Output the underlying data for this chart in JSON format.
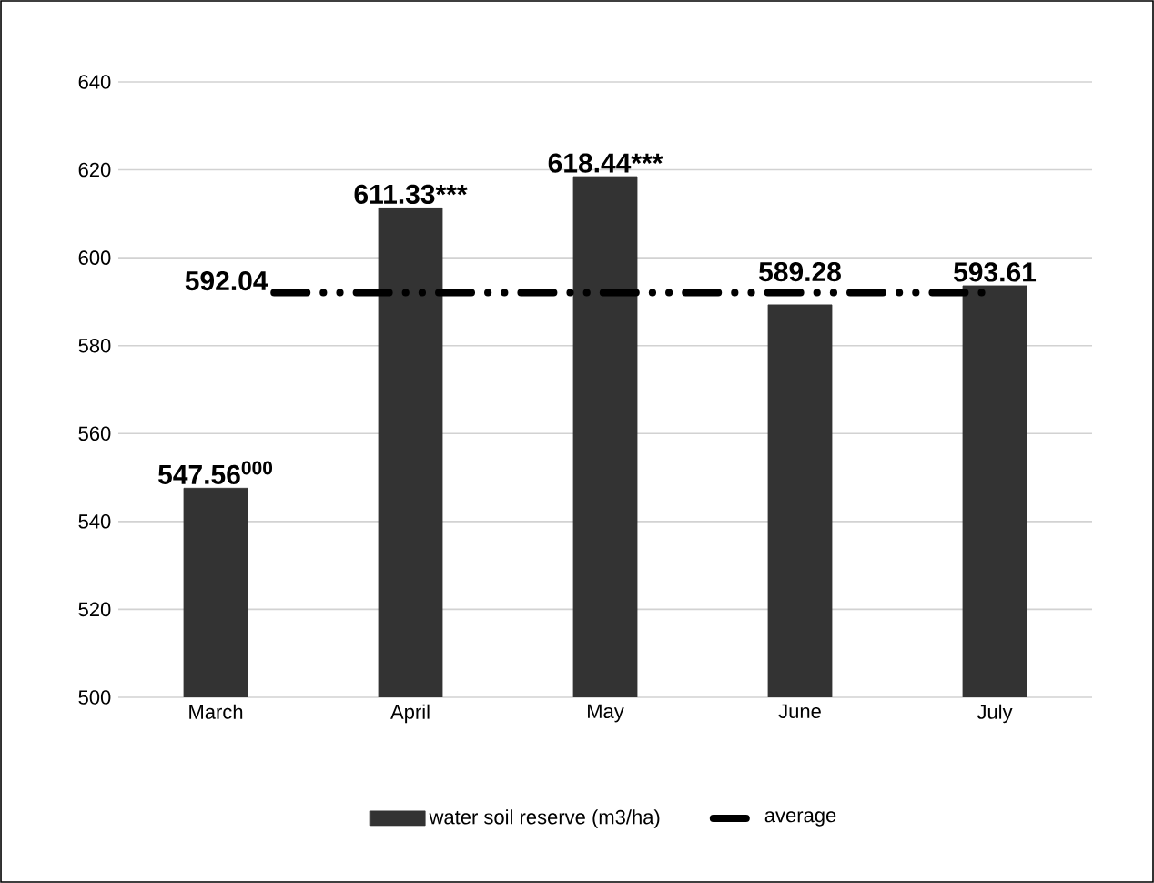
{
  "chart_data": {
    "type": "bar",
    "categories": [
      "March",
      "April",
      "May",
      "June",
      "July"
    ],
    "series": [
      {
        "name": "water soil reserve (m3/ha)",
        "color": "#333333",
        "values": [
          547.56,
          611.33,
          618.44,
          589.28,
          593.61
        ],
        "value_labels": [
          "547.56$^{000}$",
          "611.33***",
          "618.44***",
          "589.28",
          "593.61"
        ]
      }
    ],
    "ylim": [
      500,
      640
    ],
    "yticks": [
      500,
      520,
      540,
      560,
      580,
      600,
      620,
      640
    ],
    "grid": "y",
    "legend": "bottom",
    "ref_lines": [
      {
        "axis": "y",
        "value": 592.04,
        "label": "average",
        "color": "#000000",
        "line_style": "dashdot"
      }
    ],
    "annotations": [
      "592.04"
    ]
  }
}
